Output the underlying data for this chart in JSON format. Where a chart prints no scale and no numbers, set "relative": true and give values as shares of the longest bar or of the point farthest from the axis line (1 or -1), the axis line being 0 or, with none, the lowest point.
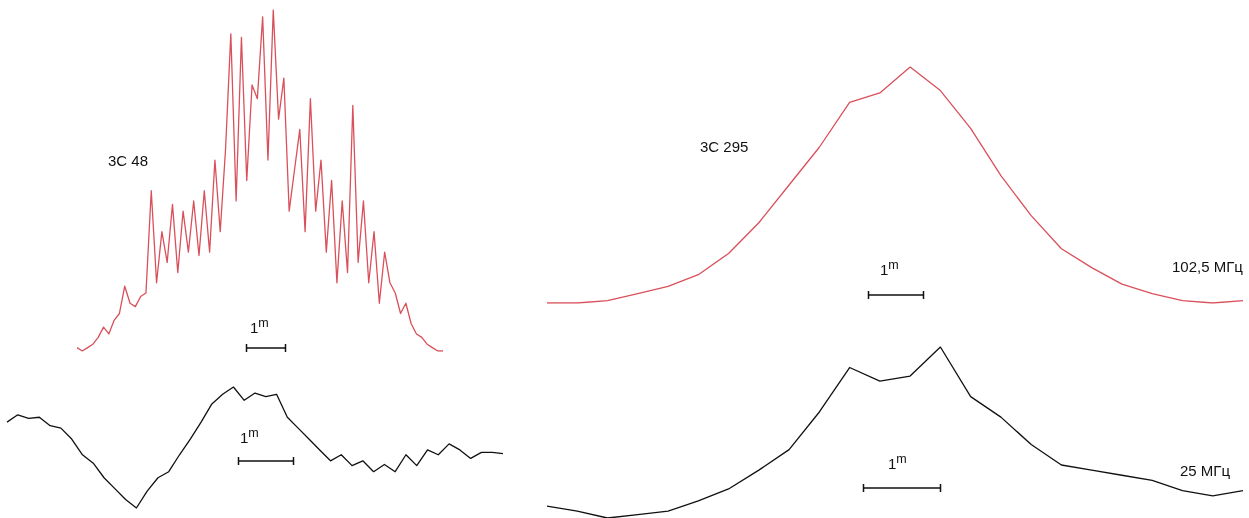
{
  "chart_data": [
    {
      "type": "line",
      "relative": true,
      "categories": [
        null,
        null,
        null,
        null,
        null,
        null,
        null,
        null,
        null,
        null,
        null,
        null,
        null,
        null,
        null,
        null,
        null,
        null,
        null,
        null,
        null,
        null,
        null,
        null,
        null,
        null,
        null,
        null,
        null,
        null,
        null,
        null,
        null,
        null,
        null,
        null,
        null,
        null,
        null,
        null,
        null,
        null,
        null,
        null,
        null,
        null,
        null,
        null,
        null,
        null,
        null,
        null,
        null,
        null,
        null,
        null,
        null,
        null,
        null,
        null,
        null,
        null,
        null,
        null,
        null,
        null,
        null,
        null,
        null,
        null
      ],
      "series": [
        {
          "color": "#d9505a",
          "values": [
            0.01,
            0.0,
            0.01,
            0.02,
            0.04,
            0.07,
            0.05,
            0.09,
            0.11,
            0.19,
            0.14,
            0.13,
            0.16,
            0.17,
            0.47,
            0.2,
            0.35,
            0.26,
            0.43,
            0.23,
            0.41,
            0.29,
            0.44,
            0.28,
            0.47,
            0.29,
            0.56,
            0.35,
            0.59,
            0.93,
            0.44,
            0.92,
            0.5,
            0.78,
            0.74,
            0.98,
            0.56,
            1,
            0.68,
            0.8,
            0.41,
            0.53,
            0.65,
            0.35,
            0.74,
            0.41,
            0.56,
            0.29,
            0.5,
            0.2,
            0.44,
            0.23,
            0.72,
            0.26,
            0.44,
            0.2,
            0.35,
            0.14,
            0.29,
            0.2,
            0.17,
            0.11,
            0.14,
            0.08,
            0.05,
            0.04,
            0.02,
            0.01,
            0,
            0
          ]
        }
      ],
      "annotations": [
        "3C 48",
        "1$^{m}$"
      ]
    },
    {
      "type": "line",
      "relative": true,
      "categories": [
        null,
        null,
        null,
        null,
        null,
        null,
        null,
        null,
        null,
        null,
        null,
        null,
        null,
        null,
        null,
        null,
        null,
        null,
        null,
        null,
        null,
        null,
        null,
        null,
        null,
        null,
        null,
        null,
        null,
        null,
        null,
        null,
        null,
        null,
        null,
        null,
        null,
        null,
        null,
        null,
        null,
        null,
        null,
        null,
        null,
        null,
        null
      ],
      "series": [
        {
          "color": "#111111",
          "values": [
            0.71,
            0.77,
            0.74,
            0.75,
            0.68,
            0.66,
            0.57,
            0.44,
            0.37,
            0.25,
            0.16,
            0.07,
            0,
            0.14,
            0.25,
            0.3,
            0.44,
            0.57,
            0.71,
            0.86,
            0.94,
            1,
            0.89,
            0.95,
            0.92,
            0.94,
            0.75,
            0.66,
            0.57,
            0.48,
            0.39,
            0.44,
            0.35,
            0.39,
            0.3,
            0.36,
            0.3,
            0.44,
            0.35,
            0.48,
            0.44,
            0.53,
            0.48,
            0.41,
            0.46,
            0.46,
            0.45
          ]
        }
      ],
      "annotations": [
        "1$^{m}$"
      ]
    },
    {
      "type": "line",
      "relative": true,
      "categories": [
        null,
        null,
        null,
        null,
        null,
        null,
        null,
        null,
        null,
        null,
        null,
        null,
        null,
        null,
        null,
        null,
        null,
        null,
        null,
        null,
        null,
        null,
        null,
        null
      ],
      "series": [
        {
          "color": "#d9505a",
          "values": [
            0,
            0,
            0.01,
            0.04,
            0.07,
            0.12,
            0.21,
            0.34,
            0.5,
            0.66,
            0.85,
            0.89,
            1,
            0.9,
            0.74,
            0.54,
            0.37,
            0.23,
            0.15,
            0.08,
            0.04,
            0.01,
            0,
            0.01
          ]
        }
      ],
      "annotations": [
        "3C 295",
        "1$^{m}$",
        "102,5 МГц"
      ]
    },
    {
      "type": "line",
      "relative": true,
      "categories": [
        null,
        null,
        null,
        null,
        null,
        null,
        null,
        null,
        null,
        null,
        null,
        null,
        null,
        null,
        null,
        null,
        null,
        null,
        null,
        null,
        null,
        null,
        null,
        null
      ],
      "series": [
        {
          "color": "#111111",
          "values": [
            0.07,
            0.04,
            0,
            0.02,
            0.04,
            0.1,
            0.17,
            0.28,
            0.4,
            0.62,
            0.88,
            0.8,
            0.83,
            1,
            0.71,
            0.59,
            0.43,
            0.31,
            0.28,
            0.25,
            0.22,
            0.16,
            0.13,
            0.16
          ]
        }
      ],
      "annotations": [
        "1$^{m}$",
        "25 МГц"
      ]
    }
  ]
}
